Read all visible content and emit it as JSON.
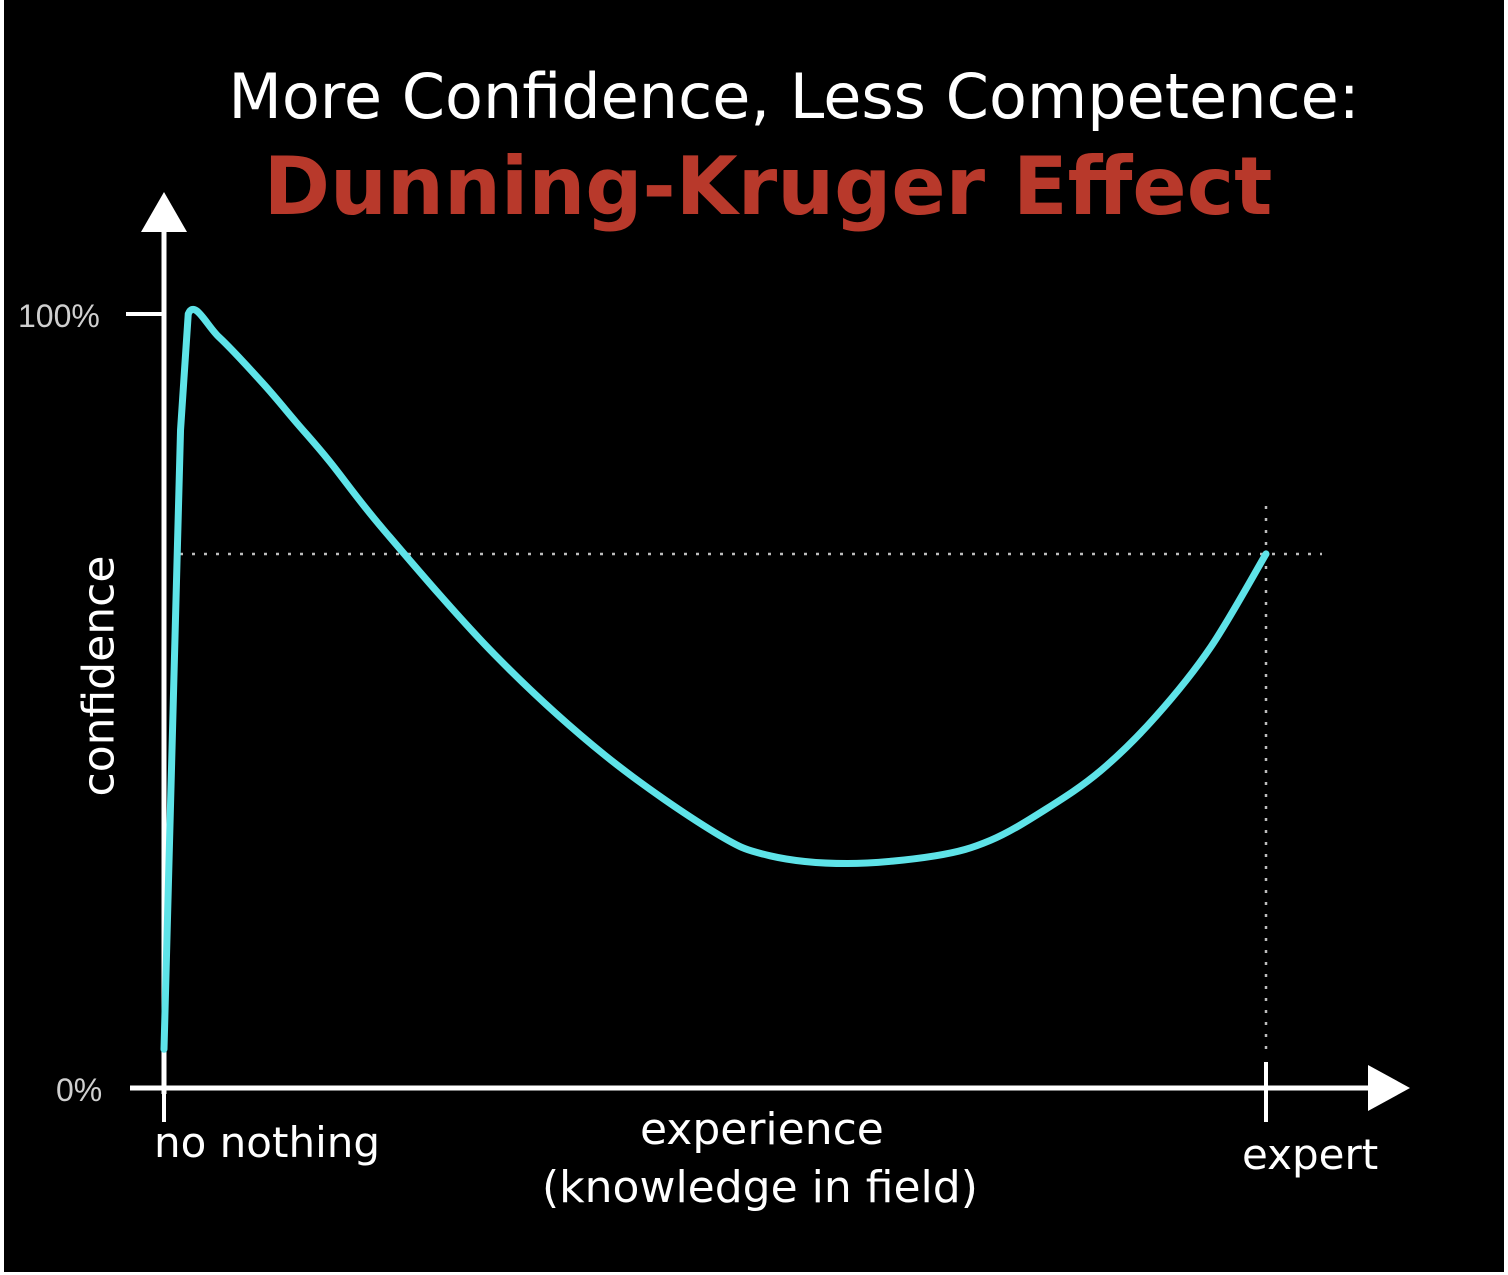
{
  "chart_data": {
    "type": "line",
    "title": "More Confidence, Less Competence:",
    "subtitle": "Dunning-Kruger Effect",
    "xlabel": "experience",
    "xlabel_sub": "(knowledge in field)",
    "ylabel": "confidence",
    "y_ticks": [
      "100%",
      "0%"
    ],
    "x_ticks": [
      "no nothing",
      "expert"
    ],
    "ylim": [
      0,
      100
    ],
    "xlim": [
      0,
      100
    ],
    "reference_level": 69,
    "reference_x": 100,
    "series": [
      {
        "color": "#5ee3e8",
        "x": [
          0,
          1.5,
          2.2,
          5,
          9,
          12,
          15,
          20,
          30,
          40,
          50,
          55,
          62,
          70,
          75,
          80,
          85,
          90,
          95,
          100
        ],
        "y": [
          5,
          85,
          100,
          97,
          91,
          86,
          81,
          72,
          56,
          43,
          33,
          30,
          29,
          30,
          32,
          36,
          41,
          48,
          57,
          69
        ]
      }
    ],
    "colors": {
      "background": "#000000",
      "line": "#5ee3e8",
      "subtitle": "#b8392b",
      "axis": "#ffffff",
      "reference": "#bdbdbd"
    }
  }
}
